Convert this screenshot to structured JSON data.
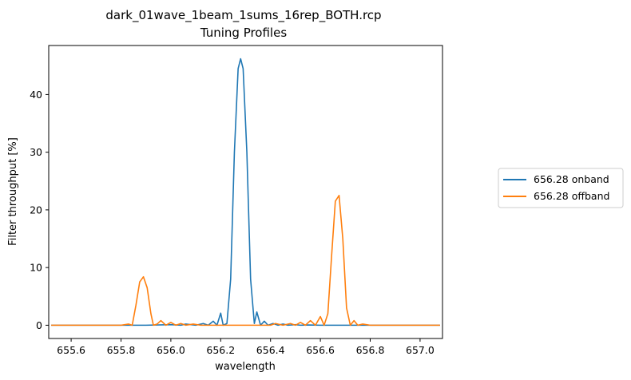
{
  "chart_data": {
    "type": "line",
    "title_line1": "dark_01wave_1beam_1sums_16rep_BOTH.rcp",
    "title_line2": "Tuning Profiles",
    "xlabel": "wavelength",
    "ylabel": "Filter throughput [%]",
    "xlim": [
      655.51,
      657.09
    ],
    "ylim": [
      -2.3,
      48.5
    ],
    "xticks": [
      655.6,
      655.8,
      656.0,
      656.2,
      656.4,
      656.6,
      656.8,
      657.0
    ],
    "xtick_labels": [
      "655.6",
      "655.8",
      "656.0",
      "656.2",
      "656.4",
      "656.6",
      "656.8",
      "657.0"
    ],
    "yticks": [
      0,
      10,
      20,
      30,
      40
    ],
    "ytick_labels": [
      "0",
      "10",
      "20",
      "30",
      "40"
    ],
    "legend_placement": "outside-right",
    "grid": false,
    "series": [
      {
        "name": "656.28 onband",
        "color": "#1f77b4",
        "x": [
          655.52,
          655.9,
          656.0,
          656.04,
          656.06,
          656.1,
          656.13,
          656.15,
          656.17,
          656.185,
          656.2,
          656.21,
          656.225,
          656.24,
          656.255,
          656.27,
          656.28,
          656.29,
          656.305,
          656.32,
          656.335,
          656.345,
          656.36,
          656.375,
          656.39,
          656.41,
          656.43,
          656.45,
          656.47,
          656.5,
          656.52,
          656.55,
          656.6,
          657.08
        ],
        "y": [
          0.0,
          0.0,
          0.1,
          0.0,
          0.2,
          0.0,
          0.3,
          0.0,
          0.7,
          0.0,
          2.1,
          0.0,
          0.3,
          8.0,
          30.0,
          44.5,
          46.2,
          44.5,
          30.0,
          8.0,
          0.3,
          2.3,
          0.0,
          0.7,
          0.0,
          0.3,
          0.0,
          0.2,
          0.0,
          0.1,
          0.0,
          0.05,
          0.0,
          0.0
        ]
      },
      {
        "name": "656.28 offband",
        "color": "#ff7f0e",
        "x": [
          655.52,
          655.8,
          655.83,
          655.845,
          655.86,
          655.875,
          655.89,
          655.905,
          655.92,
          655.93,
          655.945,
          655.96,
          655.98,
          656.0,
          656.02,
          656.04,
          656.06,
          656.09,
          656.12,
          656.2,
          656.3,
          656.4,
          656.42,
          656.45,
          656.48,
          656.5,
          656.52,
          656.54,
          656.56,
          656.58,
          656.6,
          656.615,
          656.63,
          656.645,
          656.66,
          656.675,
          656.69,
          656.705,
          656.72,
          656.735,
          656.75,
          656.77,
          656.8,
          656.9,
          657.08
        ],
        "y": [
          0.0,
          0.0,
          0.2,
          0.0,
          3.5,
          7.5,
          8.4,
          6.5,
          2.0,
          0.0,
          0.2,
          0.8,
          0.0,
          0.5,
          0.0,
          0.3,
          0.0,
          0.2,
          0.0,
          0.0,
          0.0,
          0.0,
          0.3,
          0.0,
          0.3,
          0.0,
          0.5,
          0.0,
          0.8,
          0.0,
          1.5,
          0.0,
          2.0,
          12.0,
          21.5,
          22.5,
          15.0,
          3.0,
          0.0,
          0.8,
          0.0,
          0.2,
          0.0,
          0.0,
          0.0
        ]
      }
    ]
  }
}
